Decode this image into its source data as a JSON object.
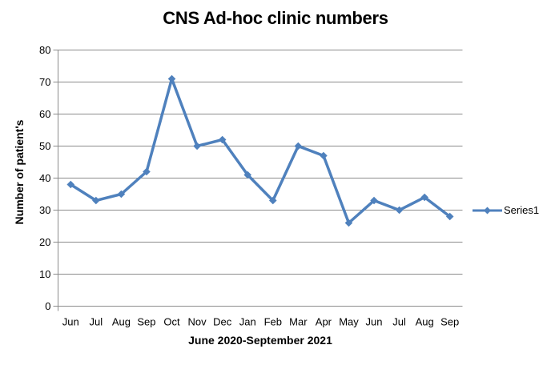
{
  "chart_data": {
    "type": "line",
    "title": "CNS Ad-hoc clinic numbers",
    "xlabel": "June 2020-September 2021",
    "ylabel": "Number of patient's",
    "categories": [
      "Jun",
      "Jul",
      "Aug",
      "Sep",
      "Oct",
      "Nov",
      "Dec",
      "Jan",
      "Feb",
      "Mar",
      "Apr",
      "May",
      "Jun",
      "Jul",
      "Aug",
      "Sep"
    ],
    "series": [
      {
        "name": "Series1",
        "values": [
          38,
          33,
          35,
          42,
          71,
          50,
          52,
          41,
          33,
          50,
          47,
          26,
          33,
          30,
          34,
          28
        ]
      }
    ],
    "ylim": [
      0,
      80
    ],
    "ytick_step": 10,
    "grid": true,
    "legend_position": "right",
    "marker": "diamond",
    "series_color": "#4F81BD",
    "axis_color": "#8C8C8C",
    "text_color": "#000000",
    "background_color": "#FFFFFF"
  }
}
